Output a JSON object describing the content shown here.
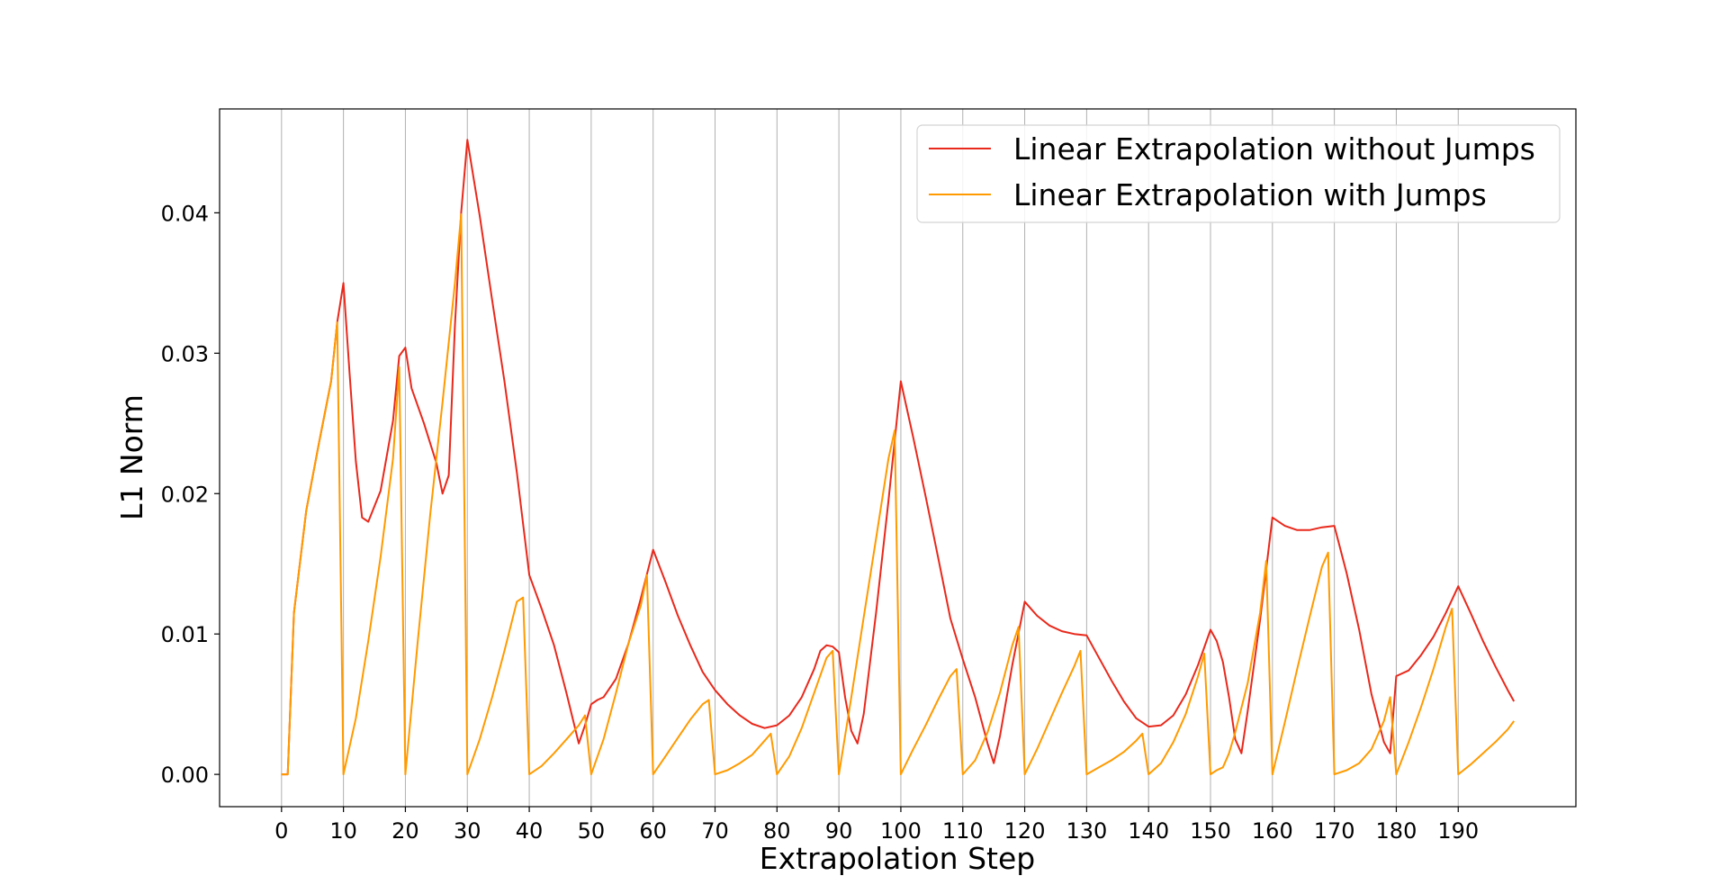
{
  "chart_data": {
    "type": "line",
    "title": "",
    "xlabel": "Extrapolation Step",
    "ylabel": "L1 Norm",
    "xlim": [
      -10,
      209
    ],
    "ylim": [
      -0.0023,
      0.0474
    ],
    "x_ticks": [
      0,
      10,
      20,
      30,
      40,
      50,
      60,
      70,
      80,
      90,
      100,
      110,
      120,
      130,
      140,
      150,
      160,
      170,
      180,
      190
    ],
    "x_tick_labels": [
      "0",
      "10",
      "20",
      "30",
      "40",
      "50",
      "60",
      "70",
      "80",
      "90",
      "100",
      "110",
      "120",
      "130",
      "140",
      "150",
      "160",
      "170",
      "180",
      "190"
    ],
    "y_ticks": [
      0.0,
      0.01,
      0.02,
      0.03,
      0.04
    ],
    "y_tick_labels": [
      "0.00",
      "0.01",
      "0.02",
      "0.03",
      "0.04"
    ],
    "grid": "vertical lines at x ticks",
    "legend_position": "top-right",
    "series": [
      {
        "name": "Linear Extrapolation without Jumps",
        "color": "#e8291c",
        "points": [
          [
            0,
            0.0
          ],
          [
            1,
            0.0
          ],
          [
            2,
            0.0115
          ],
          [
            4,
            0.0188
          ],
          [
            6,
            0.0235
          ],
          [
            8,
            0.028
          ],
          [
            9,
            0.0322
          ],
          [
            10,
            0.035
          ],
          [
            11,
            0.0285
          ],
          [
            12,
            0.0223
          ],
          [
            13,
            0.0183
          ],
          [
            14,
            0.018
          ],
          [
            16,
            0.0202
          ],
          [
            18,
            0.0252
          ],
          [
            19,
            0.0298
          ],
          [
            20,
            0.0304
          ],
          [
            21,
            0.0275
          ],
          [
            23,
            0.025
          ],
          [
            25,
            0.0222
          ],
          [
            26,
            0.02
          ],
          [
            27,
            0.0213
          ],
          [
            28,
            0.032
          ],
          [
            29,
            0.04
          ],
          [
            30,
            0.0452
          ],
          [
            32,
            0.0398
          ],
          [
            34,
            0.0338
          ],
          [
            36,
            0.028
          ],
          [
            38,
            0.0215
          ],
          [
            40,
            0.0142
          ],
          [
            42,
            0.0118
          ],
          [
            44,
            0.0092
          ],
          [
            46,
            0.0058
          ],
          [
            48,
            0.0022
          ],
          [
            49,
            0.0035
          ],
          [
            50,
            0.005
          ],
          [
            51,
            0.0053
          ],
          [
            52,
            0.0055
          ],
          [
            54,
            0.0068
          ],
          [
            56,
            0.0093
          ],
          [
            58,
            0.0125
          ],
          [
            60,
            0.016
          ],
          [
            62,
            0.0137
          ],
          [
            64,
            0.0113
          ],
          [
            66,
            0.0092
          ],
          [
            68,
            0.0073
          ],
          [
            70,
            0.006
          ],
          [
            72,
            0.005
          ],
          [
            74,
            0.0042
          ],
          [
            76,
            0.0036
          ],
          [
            78,
            0.0033
          ],
          [
            80,
            0.0035
          ],
          [
            82,
            0.0042
          ],
          [
            84,
            0.0055
          ],
          [
            86,
            0.0075
          ],
          [
            87,
            0.0088
          ],
          [
            88,
            0.0092
          ],
          [
            89,
            0.0091
          ],
          [
            90,
            0.0087
          ],
          [
            91,
            0.0055
          ],
          [
            92,
            0.0031
          ],
          [
            93,
            0.0022
          ],
          [
            94,
            0.0043
          ],
          [
            96,
            0.0115
          ],
          [
            98,
            0.0195
          ],
          [
            100,
            0.028
          ],
          [
            102,
            0.024
          ],
          [
            104,
            0.0198
          ],
          [
            106,
            0.0155
          ],
          [
            108,
            0.0111
          ],
          [
            110,
            0.0082
          ],
          [
            112,
            0.0055
          ],
          [
            114,
            0.0022
          ],
          [
            115,
            0.0008
          ],
          [
            116,
            0.0027
          ],
          [
            118,
            0.0078
          ],
          [
            120,
            0.0123
          ],
          [
            122,
            0.0113
          ],
          [
            124,
            0.0106
          ],
          [
            126,
            0.0102
          ],
          [
            128,
            0.01
          ],
          [
            130,
            0.0099
          ],
          [
            132,
            0.0083
          ],
          [
            134,
            0.0067
          ],
          [
            136,
            0.0052
          ],
          [
            138,
            0.004
          ],
          [
            140,
            0.0034
          ],
          [
            142,
            0.0035
          ],
          [
            144,
            0.0042
          ],
          [
            146,
            0.0057
          ],
          [
            148,
            0.0078
          ],
          [
            150,
            0.0103
          ],
          [
            151,
            0.0095
          ],
          [
            152,
            0.008
          ],
          [
            153,
            0.0055
          ],
          [
            154,
            0.0025
          ],
          [
            155,
            0.0015
          ],
          [
            156,
            0.0045
          ],
          [
            158,
            0.011
          ],
          [
            160,
            0.0183
          ],
          [
            162,
            0.0177
          ],
          [
            164,
            0.0174
          ],
          [
            166,
            0.0174
          ],
          [
            168,
            0.0176
          ],
          [
            170,
            0.0177
          ],
          [
            172,
            0.0143
          ],
          [
            174,
            0.0103
          ],
          [
            176,
            0.0057
          ],
          [
            178,
            0.0023
          ],
          [
            179,
            0.0015
          ],
          [
            180,
            0.007
          ],
          [
            182,
            0.0074
          ],
          [
            184,
            0.0085
          ],
          [
            186,
            0.0098
          ],
          [
            188,
            0.0115
          ],
          [
            190,
            0.0134
          ],
          [
            192,
            0.0115
          ],
          [
            194,
            0.0095
          ],
          [
            196,
            0.0077
          ],
          [
            198,
            0.006
          ],
          [
            199,
            0.0052
          ]
        ]
      },
      {
        "name": "Linear Extrapolation with Jumps",
        "color": "#ff9a00",
        "points": [
          [
            0,
            0.0
          ],
          [
            1,
            0.0
          ],
          [
            2,
            0.0115
          ],
          [
            4,
            0.0188
          ],
          [
            6,
            0.0235
          ],
          [
            8,
            0.028
          ],
          [
            9,
            0.0322
          ],
          [
            10,
            0.0
          ],
          [
            12,
            0.004
          ],
          [
            14,
            0.0095
          ],
          [
            16,
            0.0155
          ],
          [
            18,
            0.0225
          ],
          [
            19,
            0.029
          ],
          [
            20,
            0.0
          ],
          [
            22,
            0.0095
          ],
          [
            24,
            0.0185
          ],
          [
            26,
            0.0265
          ],
          [
            28,
            0.035
          ],
          [
            29,
            0.0399
          ],
          [
            30,
            0.0
          ],
          [
            32,
            0.0025
          ],
          [
            34,
            0.0055
          ],
          [
            36,
            0.0088
          ],
          [
            38,
            0.0123
          ],
          [
            39,
            0.0126
          ],
          [
            40,
            0.0
          ],
          [
            42,
            0.0006
          ],
          [
            44,
            0.0015
          ],
          [
            46,
            0.0025
          ],
          [
            48,
            0.0035
          ],
          [
            49,
            0.0042
          ],
          [
            50,
            0.0
          ],
          [
            52,
            0.0025
          ],
          [
            54,
            0.0058
          ],
          [
            56,
            0.0093
          ],
          [
            58,
            0.012
          ],
          [
            59,
            0.0142
          ],
          [
            60,
            0.0
          ],
          [
            62,
            0.0013
          ],
          [
            64,
            0.0026
          ],
          [
            66,
            0.0039
          ],
          [
            68,
            0.005
          ],
          [
            69,
            0.0053
          ],
          [
            70,
            0.0
          ],
          [
            72,
            0.0003
          ],
          [
            74,
            0.0008
          ],
          [
            76,
            0.0014
          ],
          [
            78,
            0.0024
          ],
          [
            79,
            0.0029
          ],
          [
            80,
            0.0
          ],
          [
            82,
            0.0013
          ],
          [
            84,
            0.0033
          ],
          [
            86,
            0.0058
          ],
          [
            88,
            0.0083
          ],
          [
            89,
            0.0088
          ],
          [
            90,
            0.0
          ],
          [
            92,
            0.0055
          ],
          [
            94,
            0.0112
          ],
          [
            96,
            0.0168
          ],
          [
            98,
            0.0225
          ],
          [
            99,
            0.0245
          ],
          [
            100,
            0.0
          ],
          [
            102,
            0.0018
          ],
          [
            104,
            0.0035
          ],
          [
            106,
            0.0053
          ],
          [
            108,
            0.007
          ],
          [
            109,
            0.0075
          ],
          [
            110,
            0.0
          ],
          [
            112,
            0.001
          ],
          [
            114,
            0.003
          ],
          [
            116,
            0.0058
          ],
          [
            118,
            0.0092
          ],
          [
            119,
            0.0105
          ],
          [
            120,
            0.0
          ],
          [
            122,
            0.0018
          ],
          [
            124,
            0.0038
          ],
          [
            126,
            0.0058
          ],
          [
            128,
            0.0077
          ],
          [
            129,
            0.0088
          ],
          [
            130,
            0.0
          ],
          [
            132,
            0.0005
          ],
          [
            134,
            0.001
          ],
          [
            136,
            0.0016
          ],
          [
            138,
            0.0024
          ],
          [
            139,
            0.0029
          ],
          [
            140,
            0.0
          ],
          [
            142,
            0.0008
          ],
          [
            144,
            0.0023
          ],
          [
            146,
            0.0043
          ],
          [
            148,
            0.007
          ],
          [
            149,
            0.0086
          ],
          [
            150,
            0.0
          ],
          [
            151,
            0.0003
          ],
          [
            152,
            0.0005
          ],
          [
            153,
            0.0015
          ],
          [
            154,
            0.003
          ],
          [
            156,
            0.0065
          ],
          [
            158,
            0.0115
          ],
          [
            159,
            0.0152
          ],
          [
            160,
            0.0
          ],
          [
            162,
            0.0037
          ],
          [
            164,
            0.0075
          ],
          [
            166,
            0.0112
          ],
          [
            168,
            0.0148
          ],
          [
            169,
            0.0158
          ],
          [
            170,
            0.0
          ],
          [
            172,
            0.0003
          ],
          [
            174,
            0.0008
          ],
          [
            176,
            0.0018
          ],
          [
            178,
            0.0038
          ],
          [
            179,
            0.0055
          ],
          [
            180,
            0.0
          ],
          [
            182,
            0.0023
          ],
          [
            184,
            0.0048
          ],
          [
            186,
            0.0075
          ],
          [
            188,
            0.0105
          ],
          [
            189,
            0.0118
          ],
          [
            190,
            0.0
          ],
          [
            192,
            0.0007
          ],
          [
            194,
            0.0015
          ],
          [
            196,
            0.0023
          ],
          [
            198,
            0.0032
          ],
          [
            199,
            0.0038
          ]
        ]
      }
    ]
  }
}
